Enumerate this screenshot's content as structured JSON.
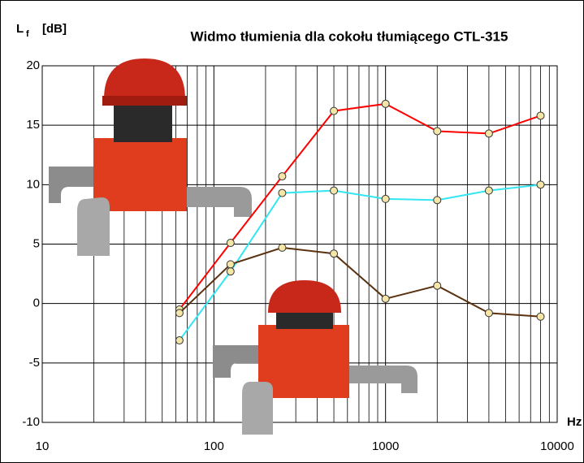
{
  "chart_data": {
    "type": "line",
    "title": "Widmo tłumienia dla cokołu tłumiącego CTL-315",
    "ylabel": "L",
    "ylabel_subscript": "f",
    "yunit": "[dB]",
    "xunit": "Hz",
    "log_x": true,
    "grid": true,
    "x": [
      63,
      125,
      250,
      500,
      1000,
      2000,
      4000,
      8000
    ],
    "series": [
      {
        "color": "#ff0000",
        "values": [
          -0.5,
          5.1,
          10.7,
          16.2,
          16.8,
          14.5,
          14.3,
          15.8
        ]
      },
      {
        "color": "#33e6f2",
        "values": [
          -3.1,
          2.7,
          9.3,
          9.5,
          8.8,
          8.7,
          9.5,
          10.0
        ]
      },
      {
        "color": "#5a3210",
        "values": [
          -0.8,
          3.3,
          4.7,
          4.2,
          0.4,
          1.5,
          -0.8,
          -1.1
        ]
      }
    ],
    "xlim": [
      10,
      10000
    ],
    "xticks": [
      10,
      100,
      1000,
      10000
    ],
    "xgrid_minor": [
      20,
      30,
      40,
      50,
      60,
      70,
      80,
      90,
      200,
      300,
      400,
      500,
      600,
      700,
      800,
      900,
      2000,
      3000,
      4000,
      5000,
      6000,
      7000,
      8000,
      9000
    ],
    "ylim": [
      -10,
      20
    ],
    "yticks": [
      -10,
      -5,
      0,
      5,
      10,
      15,
      20
    ]
  }
}
